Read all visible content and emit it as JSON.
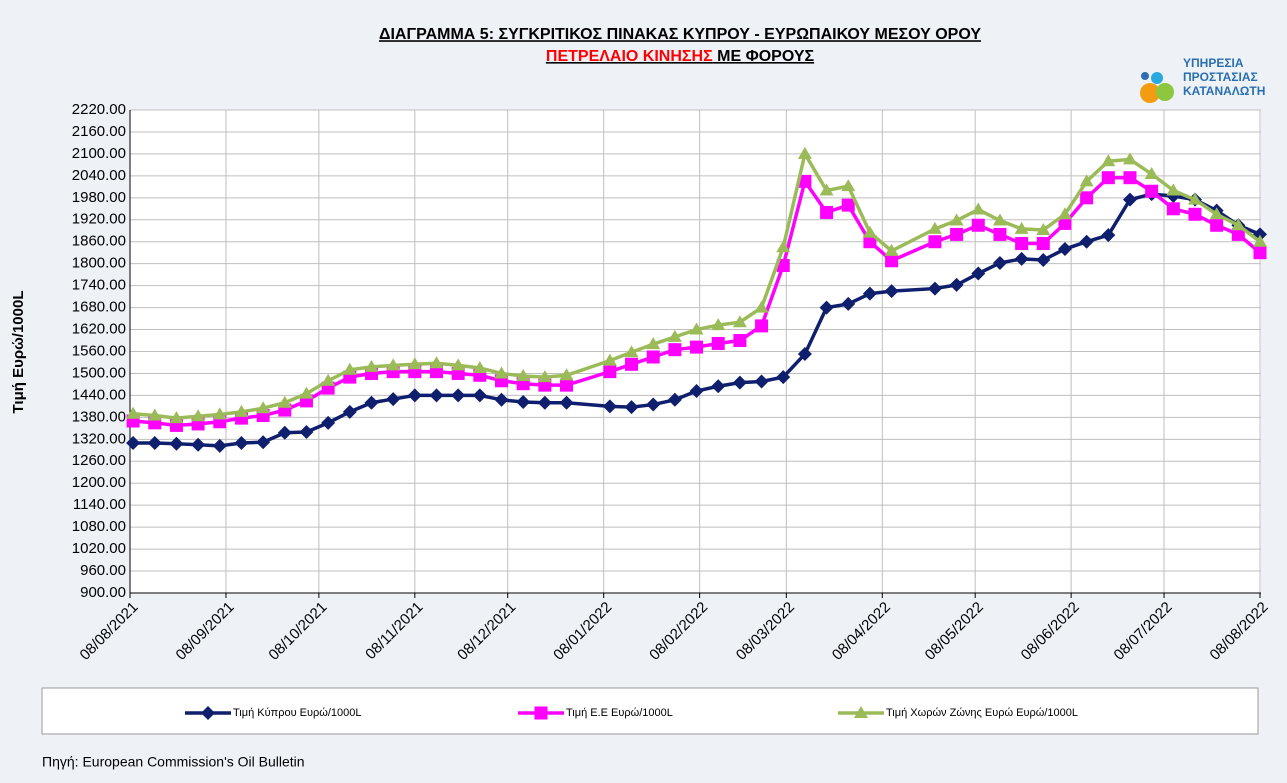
{
  "chart_data": {
    "type": "line",
    "title": "ΔΙΑΓΡΑΜΜΑ 5: ΣΥΓΚΡΙΤΙΚΟΣ ΠΙΝΑΚΑΣ ΚΥΠΡΟΥ - ΕΥΡΩΠΑΙΚΟΥ ΜΕΣΟΥ ΟΡΟΥ",
    "subtitle_red": "ΠΕΤΡΕΛΑΙΟ ΚΙΝΗΣΗΣ",
    "subtitle_black": " ΜΕ  ΦΟΡΟΥΣ",
    "logo": [
      "ΥΠΗΡΕΣΙΑ",
      "ΠΡΟΣΤΑΣΙΑΣ",
      "ΚΑΤΑΝΑΛΩΤΗ"
    ],
    "y_label": "Τιμή Ευρώ/1000L",
    "source": "Πηγή: European Commission's Oil Bulletin",
    "grid": true,
    "legend": "bottom",
    "xlim": [
      "08/08/2021",
      "08/08/2022"
    ],
    "xticks": [
      "08/08/2021",
      "08/09/2021",
      "08/10/2021",
      "08/11/2021",
      "08/12/2021",
      "08/01/2022",
      "08/02/2022",
      "08/03/2022",
      "08/04/2022",
      "08/05/2022",
      "08/06/2022",
      "08/07/2022",
      "08/08/2022"
    ],
    "ylim": [
      900,
      2220
    ],
    "yticks": [
      {
        "value": 900,
        "label": "900.00"
      },
      {
        "value": 960,
        "label": "960.00"
      },
      {
        "value": 1020,
        "label": "1020.00"
      },
      {
        "value": 1080,
        "label": "1080.00"
      },
      {
        "value": 1140,
        "label": "1140.00"
      },
      {
        "value": 1200,
        "label": "1200.00"
      },
      {
        "value": 1260,
        "label": "1260.00"
      },
      {
        "value": 1320,
        "label": "1320.00"
      },
      {
        "value": 1380,
        "label": "1380.00"
      },
      {
        "value": 1440,
        "label": "1440.00"
      },
      {
        "value": 1500,
        "label": "1500.00"
      },
      {
        "value": 1560,
        "label": "1560.00"
      },
      {
        "value": 1620,
        "label": "1620.00"
      },
      {
        "value": 1680,
        "label": "1680.00"
      },
      {
        "value": 1740,
        "label": "1740.00"
      },
      {
        "value": 1800,
        "label": "1800.00"
      },
      {
        "value": 1860,
        "label": "1860.00"
      },
      {
        "value": 1920,
        "label": "1920.00"
      },
      {
        "value": 1980,
        "label": "1980.00"
      },
      {
        "value": 2040,
        "label": "2040.00"
      },
      {
        "value": 2100,
        "label": "2100.00"
      },
      {
        "value": 2160,
        "label": "2160.00"
      },
      {
        "value": 2220,
        "label": "2220.00"
      }
    ],
    "x": [
      "09/08/2021",
      "16/08/2021",
      "23/08/2021",
      "30/08/2021",
      "06/09/2021",
      "13/09/2021",
      "20/09/2021",
      "27/09/2021",
      "04/10/2021",
      "11/10/2021",
      "18/10/2021",
      "25/10/2021",
      "01/11/2021",
      "08/11/2021",
      "15/11/2021",
      "22/11/2021",
      "29/11/2021",
      "06/12/2021",
      "13/12/2021",
      "20/12/2021",
      "27/12/2021",
      "10/01/2022",
      "17/01/2022",
      "24/01/2022",
      "31/01/2022",
      "07/02/2022",
      "14/02/2022",
      "21/02/2022",
      "28/02/2022",
      "07/03/2022",
      "14/03/2022",
      "21/03/2022",
      "28/03/2022",
      "04/04/2022",
      "11/04/2022",
      "25/04/2022",
      "02/05/2022",
      "09/05/2022",
      "16/05/2022",
      "23/05/2022",
      "30/05/2022",
      "06/06/2022",
      "13/06/2022",
      "20/06/2022",
      "27/06/2022",
      "04/07/2022",
      "11/07/2022",
      "18/07/2022",
      "25/07/2022",
      "01/08/2022",
      "08/08/2022"
    ],
    "series": [
      {
        "name": "Τιμή Κύπρου Ευρώ/1000L",
        "color": "#0f1f6e",
        "marker": "diamond",
        "values": [
          1310,
          1310,
          1308,
          1305,
          1302,
          1310,
          1312,
          1338,
          1340,
          1365,
          1395,
          1420,
          1430,
          1440,
          1440,
          1440,
          1440,
          1428,
          1422,
          1420,
          1420,
          1410,
          1408,
          1415,
          1428,
          1452,
          1465,
          1475,
          1478,
          1490,
          1553,
          1680,
          1690,
          1718,
          1725,
          1732,
          1742,
          1773,
          1802,
          1813,
          1810,
          1840,
          1860,
          1878,
          1975,
          1990,
          1985,
          1975,
          1945,
          1905,
          1880
        ]
      },
      {
        "name": "Τιμή Ε.Ε Ευρώ/1000L",
        "color": "#ff00ff",
        "marker": "square",
        "values": [
          1370,
          1365,
          1358,
          1362,
          1368,
          1378,
          1385,
          1400,
          1425,
          1460,
          1490,
          1500,
          1505,
          1505,
          1505,
          1500,
          1495,
          1480,
          1472,
          1468,
          1468,
          1505,
          1525,
          1545,
          1565,
          1572,
          1582,
          1590,
          1630,
          1795,
          2025,
          1940,
          1960,
          1860,
          1808,
          1860,
          1880,
          1905,
          1880,
          1855,
          1855,
          1910,
          1980,
          2035,
          2035,
          1998,
          1950,
          1935,
          1905,
          1880,
          1830
        ]
      },
      {
        "name": "Τιμή Χωρών Ζώνης Ευρώ Ευρώ/1000L",
        "color": "#9bbb59",
        "marker": "triangle",
        "values": [
          1390,
          1385,
          1378,
          1383,
          1388,
          1395,
          1405,
          1420,
          1445,
          1480,
          1510,
          1518,
          1522,
          1525,
          1528,
          1522,
          1515,
          1500,
          1493,
          1490,
          1495,
          1535,
          1558,
          1580,
          1600,
          1620,
          1632,
          1640,
          1680,
          1845,
          2100,
          2000,
          2012,
          1885,
          1835,
          1895,
          1918,
          1948,
          1918,
          1895,
          1892,
          1935,
          2025,
          2080,
          2085,
          2045,
          2000,
          1975,
          1935,
          1905,
          1860
        ]
      }
    ]
  }
}
